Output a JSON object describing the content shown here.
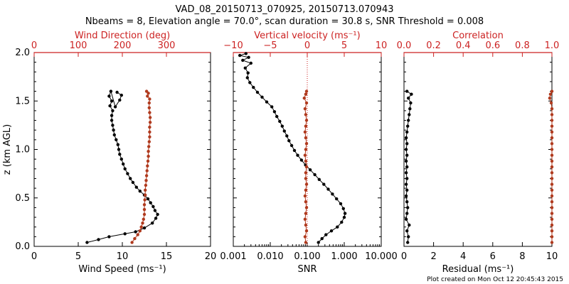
{
  "title": {
    "line1": "VAD_08_20150713_070925, 20150713.070943",
    "line2": "Nbeams = 8, Elevation angle = 70.0°, scan duration = 30.8 s, SNR Threshold = 0.008"
  },
  "footer": "Plot created on Mon Oct 12 20:45:43 2015",
  "colors": {
    "black_series": "#000000",
    "red_series": "#b03a1e",
    "red_axis": "#cc2222"
  },
  "chart_data": [
    {
      "type": "line",
      "panel": "left",
      "ylabel": "z (km AGL)",
      "ylim": [
        0.0,
        2.0
      ],
      "yticks": [
        "0.0",
        "0.5",
        "1.0",
        "1.5",
        "2.0"
      ],
      "bottom_axis": {
        "label": "Wind Speed (ms⁻¹)",
        "range": [
          0,
          20
        ],
        "ticks": [
          "0",
          "5",
          "10",
          "15",
          "20"
        ]
      },
      "top_axis": {
        "label": "Wind Direction (deg)",
        "range": [
          0,
          400
        ],
        "ticks": [
          "0",
          "100",
          "200",
          "300"
        ]
      },
      "series": [
        {
          "color": "black",
          "axis": "bottom",
          "points": [
            [
              6.0,
              0.04
            ],
            [
              7.3,
              0.07
            ],
            [
              8.5,
              0.1
            ],
            [
              10.3,
              0.13
            ],
            [
              11.5,
              0.15
            ],
            [
              12.5,
              0.19
            ],
            [
              13.4,
              0.24
            ],
            [
              13.8,
              0.29
            ],
            [
              14.0,
              0.33
            ],
            [
              13.7,
              0.37
            ],
            [
              13.5,
              0.41
            ],
            [
              13.2,
              0.45
            ],
            [
              12.9,
              0.49
            ],
            [
              12.5,
              0.53
            ],
            [
              12.0,
              0.57
            ],
            [
              11.6,
              0.61
            ],
            [
              11.2,
              0.66
            ],
            [
              10.9,
              0.7
            ],
            [
              10.6,
              0.75
            ],
            [
              10.3,
              0.8
            ],
            [
              10.1,
              0.85
            ],
            [
              9.9,
              0.9
            ],
            [
              9.7,
              0.95
            ],
            [
              9.6,
              1.0
            ],
            [
              9.5,
              1.05
            ],
            [
              9.3,
              1.1
            ],
            [
              9.1,
              1.15
            ],
            [
              9.0,
              1.2
            ],
            [
              8.9,
              1.25
            ],
            [
              8.8,
              1.3
            ],
            [
              8.8,
              1.35
            ],
            [
              8.9,
              1.4
            ],
            [
              8.6,
              1.45
            ],
            [
              8.8,
              1.5
            ],
            [
              8.5,
              1.55
            ],
            [
              8.7,
              1.6
            ],
            [
              9.2,
              1.44
            ],
            [
              9.7,
              1.51
            ],
            [
              9.9,
              1.56
            ],
            [
              9.4,
              1.59
            ]
          ]
        },
        {
          "color": "red",
          "axis": "top",
          "points": [
            [
              222,
              0.04
            ],
            [
              228,
              0.08
            ],
            [
              235,
              0.12
            ],
            [
              240,
              0.16
            ],
            [
              243,
              0.2
            ],
            [
              246,
              0.24
            ],
            [
              248,
              0.28
            ],
            [
              250,
              0.33
            ],
            [
              250,
              0.38
            ],
            [
              250,
              0.43
            ],
            [
              251,
              0.48
            ],
            [
              252,
              0.53
            ],
            [
              252,
              0.58
            ],
            [
              253,
              0.63
            ],
            [
              254,
              0.68
            ],
            [
              255,
              0.73
            ],
            [
              256,
              0.78
            ],
            [
              257,
              0.83
            ],
            [
              258,
              0.88
            ],
            [
              259,
              0.93
            ],
            [
              259,
              0.98
            ],
            [
              260,
              1.03
            ],
            [
              261,
              1.08
            ],
            [
              262,
              1.13
            ],
            [
              262,
              1.18
            ],
            [
              262,
              1.23
            ],
            [
              263,
              1.28
            ],
            [
              263,
              1.33
            ],
            [
              262,
              1.38
            ],
            [
              261,
              1.43
            ],
            [
              261,
              1.48
            ],
            [
              262,
              1.52
            ],
            [
              257,
              1.55
            ],
            [
              259,
              1.58
            ],
            [
              255,
              1.6
            ]
          ]
        }
      ]
    },
    {
      "type": "line",
      "panel": "middle",
      "ylim": [
        0.0,
        2.0
      ],
      "bottom_axis": {
        "label": "SNR",
        "scale": "log",
        "range": [
          0.001,
          10
        ],
        "ticks": [
          "0.001",
          "0.010",
          "0.100",
          "1.000",
          "10.000"
        ]
      },
      "top_axis": {
        "label": "Vertical velocity (ms⁻¹)",
        "range": [
          -10,
          10
        ],
        "ticks": [
          "−10",
          "−5",
          "0",
          "5",
          "10"
        ]
      },
      "reference_line": {
        "axis": "top",
        "value": 0,
        "style": "dotted"
      },
      "series": [
        {
          "color": "black",
          "axis": "bottom",
          "points": [
            [
              0.2,
              0.04
            ],
            [
              0.25,
              0.08
            ],
            [
              0.32,
              0.12
            ],
            [
              0.45,
              0.16
            ],
            [
              0.65,
              0.2
            ],
            [
              0.85,
              0.25
            ],
            [
              1.0,
              0.3
            ],
            [
              1.05,
              0.34
            ],
            [
              0.95,
              0.39
            ],
            [
              0.8,
              0.44
            ],
            [
              0.62,
              0.49
            ],
            [
              0.48,
              0.54
            ],
            [
              0.37,
              0.59
            ],
            [
              0.28,
              0.64
            ],
            [
              0.21,
              0.69
            ],
            [
              0.16,
              0.74
            ],
            [
              0.12,
              0.79
            ],
            [
              0.09,
              0.84
            ],
            [
              0.07,
              0.89
            ],
            [
              0.055,
              0.94
            ],
            [
              0.045,
              0.99
            ],
            [
              0.038,
              1.04
            ],
            [
              0.032,
              1.09
            ],
            [
              0.028,
              1.14
            ],
            [
              0.024,
              1.19
            ],
            [
              0.021,
              1.24
            ],
            [
              0.018,
              1.29
            ],
            [
              0.015,
              1.34
            ],
            [
              0.013,
              1.39
            ],
            [
              0.011,
              1.44
            ],
            [
              0.008,
              1.49
            ],
            [
              0.006,
              1.54
            ],
            [
              0.0045,
              1.59
            ],
            [
              0.0035,
              1.64
            ],
            [
              0.0028,
              1.69
            ],
            [
              0.0024,
              1.74
            ],
            [
              0.0025,
              1.79
            ],
            [
              0.0021,
              1.84
            ],
            [
              0.003,
              1.89
            ],
            [
              0.0018,
              1.92
            ],
            [
              0.0026,
              1.95
            ],
            [
              0.0015,
              1.97
            ],
            [
              0.0022,
              1.99
            ]
          ]
        },
        {
          "color": "red",
          "axis": "top",
          "points": [
            [
              -0.2,
              0.04
            ],
            [
              -0.3,
              0.1
            ],
            [
              -0.1,
              0.16
            ],
            [
              -0.2,
              0.22
            ],
            [
              -0.3,
              0.28
            ],
            [
              -0.2,
              0.34
            ],
            [
              -0.1,
              0.4
            ],
            [
              -0.2,
              0.46
            ],
            [
              -0.3,
              0.52
            ],
            [
              -0.2,
              0.58
            ],
            [
              -0.1,
              0.64
            ],
            [
              -0.2,
              0.7
            ],
            [
              -0.2,
              0.76
            ],
            [
              -0.1,
              0.82
            ],
            [
              -0.2,
              0.88
            ],
            [
              -0.3,
              0.94
            ],
            [
              -0.2,
              1.0
            ],
            [
              -0.1,
              1.06
            ],
            [
              -0.2,
              1.12
            ],
            [
              -0.3,
              1.18
            ],
            [
              -0.2,
              1.24
            ],
            [
              -0.1,
              1.3
            ],
            [
              -0.2,
              1.36
            ],
            [
              -0.3,
              1.42
            ],
            [
              -0.1,
              1.48
            ],
            [
              -0.4,
              1.53
            ],
            [
              -0.2,
              1.57
            ],
            [
              -0.1,
              1.6
            ]
          ]
        }
      ]
    },
    {
      "type": "line",
      "panel": "right",
      "ylim": [
        0.0,
        2.0
      ],
      "bottom_axis": {
        "label": "Residual (ms⁻¹)",
        "range": [
          0,
          10
        ],
        "ticks": [
          "0",
          "2",
          "4",
          "6",
          "8",
          "10"
        ]
      },
      "top_axis": {
        "label": "Correlation",
        "range": [
          0.0,
          1.0
        ],
        "ticks": [
          "0.0",
          "0.2",
          "0.4",
          "0.6",
          "0.8",
          "1.0"
        ]
      },
      "series": [
        {
          "color": "black",
          "axis": "bottom",
          "points": [
            [
              0.25,
              0.04
            ],
            [
              0.3,
              0.1
            ],
            [
              0.2,
              0.16
            ],
            [
              0.35,
              0.22
            ],
            [
              0.15,
              0.28
            ],
            [
              0.2,
              0.34
            ],
            [
              0.25,
              0.4
            ],
            [
              0.2,
              0.46
            ],
            [
              0.15,
              0.52
            ],
            [
              0.2,
              0.58
            ],
            [
              0.15,
              0.64
            ],
            [
              0.2,
              0.7
            ],
            [
              0.15,
              0.76
            ],
            [
              0.2,
              0.82
            ],
            [
              0.15,
              0.88
            ],
            [
              0.2,
              0.94
            ],
            [
              0.15,
              1.0
            ],
            [
              0.2,
              1.06
            ],
            [
              0.15,
              1.12
            ],
            [
              0.2,
              1.18
            ],
            [
              0.25,
              1.24
            ],
            [
              0.3,
              1.3
            ],
            [
              0.35,
              1.36
            ],
            [
              0.4,
              1.42
            ],
            [
              0.45,
              1.48
            ],
            [
              0.3,
              1.53
            ],
            [
              0.5,
              1.57
            ],
            [
              0.2,
              1.6
            ]
          ]
        },
        {
          "color": "red",
          "axis": "top",
          "points": [
            [
              1.0,
              0.04
            ],
            [
              1.0,
              0.1
            ],
            [
              1.0,
              0.16
            ],
            [
              1.0,
              0.22
            ],
            [
              1.0,
              0.28
            ],
            [
              1.0,
              0.34
            ],
            [
              1.0,
              0.4
            ],
            [
              1.0,
              0.46
            ],
            [
              1.0,
              0.52
            ],
            [
              1.0,
              0.58
            ],
            [
              1.0,
              0.64
            ],
            [
              1.0,
              0.7
            ],
            [
              1.0,
              0.76
            ],
            [
              1.0,
              0.82
            ],
            [
              1.0,
              0.88
            ],
            [
              1.0,
              0.94
            ],
            [
              1.0,
              1.0
            ],
            [
              1.0,
              1.06
            ],
            [
              1.0,
              1.12
            ],
            [
              1.0,
              1.18
            ],
            [
              1.0,
              1.24
            ],
            [
              1.0,
              1.3
            ],
            [
              1.0,
              1.36
            ],
            [
              1.0,
              1.42
            ],
            [
              0.995,
              1.48
            ],
            [
              0.985,
              1.53
            ],
            [
              0.99,
              1.57
            ],
            [
              1.0,
              1.6
            ]
          ]
        }
      ]
    }
  ]
}
